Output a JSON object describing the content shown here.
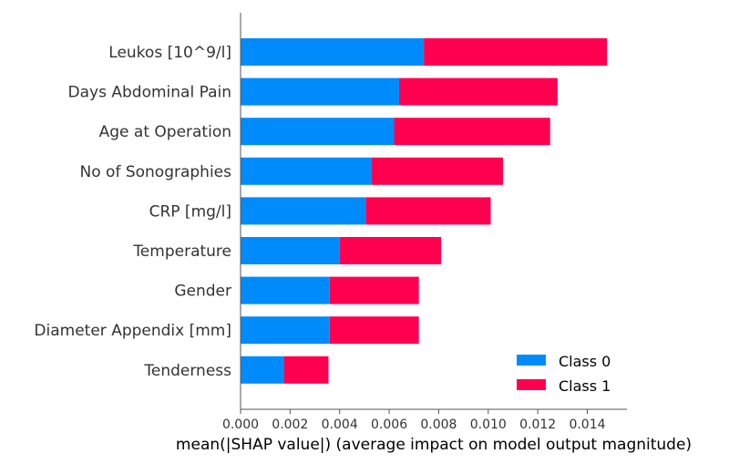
{
  "chart_data": {
    "type": "bar",
    "orientation": "horizontal",
    "stacked": true,
    "categories": [
      "Leukos [10^9/l]",
      "Days Abdominal Pain",
      "Age at Operation",
      "No of Sonographies",
      "CRP [mg/l]",
      "Temperature",
      "Gender",
      "Diameter Appendix [mm]",
      "Tenderness"
    ],
    "series": [
      {
        "name": "Class 0",
        "color": "#008bfb",
        "values": [
          0.0074,
          0.0064,
          0.0062,
          0.0053,
          0.00505,
          0.004,
          0.0036,
          0.0036,
          0.00175
        ]
      },
      {
        "name": "Class 1",
        "color": "#ff0051",
        "values": [
          0.0074,
          0.0064,
          0.0063,
          0.0053,
          0.00505,
          0.0041,
          0.0036,
          0.0036,
          0.0018
        ]
      }
    ],
    "xlabel": "mean(|SHAP value|) (average impact on model output magnitude)",
    "ylabel": "",
    "title": "",
    "xlim": [
      0,
      0.0156
    ],
    "xticks": [
      "0.000",
      "0.002",
      "0.004",
      "0.006",
      "0.008",
      "0.010",
      "0.012",
      "0.014"
    ],
    "grid": false,
    "legend_position": "bottom-right"
  }
}
